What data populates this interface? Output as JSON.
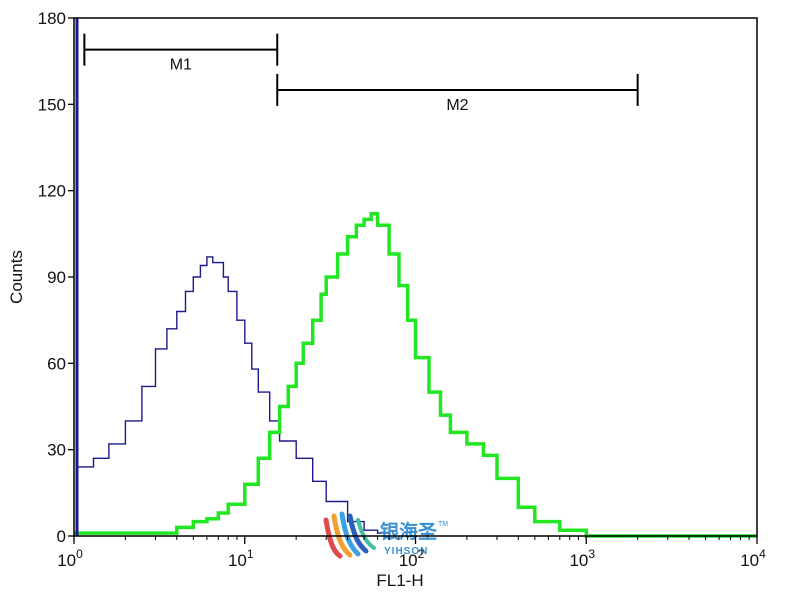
{
  "chart_data": {
    "type": "line",
    "title": "",
    "xlabel": "FL1-H",
    "ylabel": "Counts",
    "xscale": "log",
    "xlim": [
      1,
      10000
    ],
    "ylim": [
      0,
      180
    ],
    "x_ticks": [
      {
        "base": "10",
        "exp": "0",
        "value": 1
      },
      {
        "base": "10",
        "exp": "1",
        "value": 10
      },
      {
        "base": "10",
        "exp": "2",
        "value": 100
      },
      {
        "base": "10",
        "exp": "3",
        "value": 1000
      },
      {
        "base": "10",
        "exp": "4",
        "value": 10000
      }
    ],
    "y_ticks": [
      0,
      30,
      60,
      90,
      120,
      150,
      180
    ],
    "grid": false,
    "legend": "none",
    "series": [
      {
        "color": "#1a1a8c",
        "x": [
          1.05,
          1.3,
          1.6,
          2,
          2.5,
          3,
          3.5,
          4,
          4.5,
          5,
          5.5,
          6,
          6.5,
          7,
          7.5,
          8,
          9,
          10,
          11,
          12,
          14,
          16,
          20,
          25,
          30,
          40,
          50,
          60,
          70
        ],
        "y": [
          24,
          27,
          32,
          40,
          52,
          65,
          72,
          78,
          85,
          90,
          94,
          97,
          95,
          95,
          90,
          85,
          75,
          67,
          58,
          50,
          40,
          33,
          27,
          19,
          12,
          5,
          2,
          1,
          0
        ]
      },
      {
        "color": "#22e622",
        "x": [
          1,
          2,
          4,
          5,
          6,
          7,
          8,
          10,
          12,
          14,
          16,
          18,
          20,
          22,
          25,
          28,
          30,
          35,
          40,
          45,
          50,
          55,
          60,
          70,
          80,
          90,
          100,
          120,
          140,
          160,
          200,
          250,
          300,
          400,
          500,
          700,
          1000,
          2000,
          10000
        ],
        "y": [
          1,
          1,
          3,
          5,
          6,
          8,
          11,
          18,
          27,
          36,
          45,
          52,
          60,
          67,
          75,
          84,
          90,
          98,
          104,
          108,
          110,
          112,
          108,
          98,
          87,
          75,
          62,
          50,
          42,
          36,
          32,
          28,
          20,
          10,
          5,
          2,
          0,
          0,
          0
        ]
      }
    ],
    "annotations": [
      {
        "label": "M1",
        "x_start": 1.15,
        "x_end": 15.5,
        "y": 169
      },
      {
        "label": "M2",
        "x_start": 15.5,
        "x_end": 2000,
        "y": 155
      }
    ],
    "watermark": {
      "cn": "银海圣",
      "en": "YIHSON",
      "tm": "TM"
    }
  }
}
